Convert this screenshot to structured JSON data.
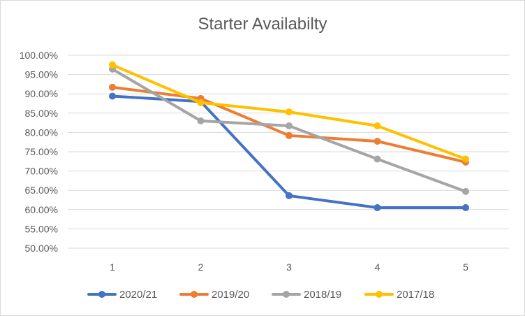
{
  "chart_data": {
    "type": "line",
    "title": "Starter Availabilty",
    "xlabel": "",
    "ylabel": "",
    "categories": [
      "1",
      "2",
      "3",
      "4",
      "5"
    ],
    "ylim": [
      0.5,
      1.0
    ],
    "ytick_step": 0.05,
    "y_format": "percent_2dp",
    "grid": true,
    "legend_position": "bottom",
    "series": [
      {
        "name": "2020/21",
        "color": "#4472c4",
        "values": [
          0.894,
          0.88,
          0.636,
          0.605,
          0.605
        ]
      },
      {
        "name": "2019/20",
        "color": "#ed7d31",
        "values": [
          0.917,
          0.888,
          0.792,
          0.777,
          0.723
        ]
      },
      {
        "name": "2018/19",
        "color": "#a5a5a5",
        "values": [
          0.964,
          0.83,
          0.817,
          0.731,
          0.647
        ]
      },
      {
        "name": "2017/18",
        "color": "#ffc000",
        "values": [
          0.975,
          0.877,
          0.853,
          0.817,
          0.731
        ]
      }
    ]
  }
}
